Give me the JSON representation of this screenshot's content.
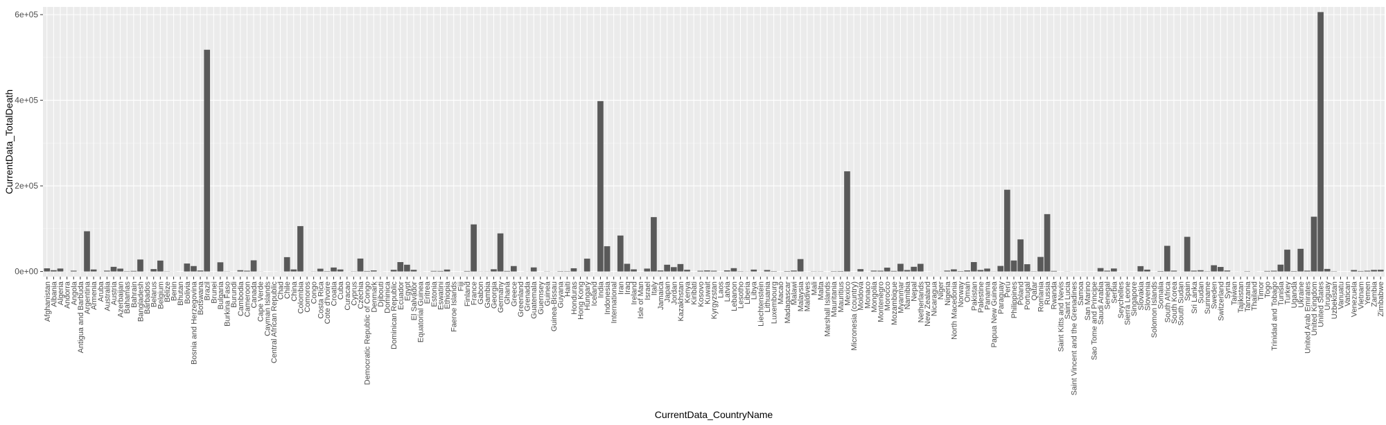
{
  "chart_data": {
    "type": "bar",
    "title": "",
    "xlabel": "CurrentData_CountryName",
    "ylabel": "CurrentData_TotalDeath",
    "ylim": [
      -12000,
      618000
    ],
    "yticks": [
      0,
      200000,
      400000,
      600000
    ],
    "ytick_labels": [
      "0e+00",
      "2e+05",
      "4e+05",
      "6e+05"
    ],
    "grid": true,
    "colors": {
      "panel": "#ebebeb",
      "grid_major": "#ffffff",
      "grid_minor": "#f5f5f5",
      "bar": "#595959"
    },
    "categories": [
      "Afghanistan",
      "Albania",
      "Algeria",
      "Andorra",
      "Angola",
      "Antigua and Barbuda",
      "Argentina",
      "Armenia",
      "Aruba",
      "Australia",
      "Austria",
      "Azerbaijan",
      "Bahamas",
      "Bahrain",
      "Bangladesh",
      "Barbados",
      "Belarus",
      "Belgium",
      "Belize",
      "Benin",
      "Bhutan",
      "Bolivia",
      "Bosnia and Herzegovina",
      "Botswana",
      "Brazil",
      "Brunei",
      "Bulgaria",
      "Burkina Faso",
      "Burundi",
      "Cambodia",
      "Cameroon",
      "Canada",
      "Cape Verde",
      "Cayman Islands",
      "Central African Republic",
      "Chad",
      "Chile",
      "China",
      "Colombia",
      "Comoros",
      "Congo",
      "Costa Rica",
      "Cote d'Ivoire",
      "Croatia",
      "Cuba",
      "Curacao",
      "Cyprus",
      "Czechia",
      "Democratic Republic of Congo",
      "Denmark",
      "Djibouti",
      "Dominica",
      "Dominican Republic",
      "Ecuador",
      "Egypt",
      "El Salvador",
      "Equatorial Guinea",
      "Eritrea",
      "Estonia",
      "Eswatini",
      "Ethiopia",
      "Faeroe Islands",
      "Fiji",
      "Finland",
      "France",
      "Gabon",
      "Gambia",
      "Georgia",
      "Germany",
      "Ghana",
      "Greece",
      "Greenland",
      "Grenada",
      "Guatemala",
      "Guernsey",
      "Guinea",
      "Guinea-Bissau",
      "Guyana",
      "Haiti",
      "Honduras",
      "Hong Kong",
      "Hungary",
      "Iceland",
      "India",
      "Indonesia",
      "International",
      "Iran",
      "Iraq",
      "Ireland",
      "Isle of Man",
      "Israel",
      "Italy",
      "Jamaica",
      "Japan",
      "Jordan",
      "Kazakhstan",
      "Kenya",
      "Kiribati",
      "Kosovo",
      "Kuwait",
      "Kyrgyzstan",
      "Laos",
      "Latvia",
      "Lebanon",
      "Lesotho",
      "Liberia",
      "Libya",
      "Liechtenstein",
      "Lithuania",
      "Luxembourg",
      "Macao",
      "Madagascar",
      "Malawi",
      "Malaysia",
      "Maldives",
      "Mali",
      "Malta",
      "Marshall Islands",
      "Mauritania",
      "Mauritius",
      "Mexico",
      "Micronesia (country)",
      "Moldova",
      "Monaco",
      "Mongolia",
      "Montenegro",
      "Morocco",
      "Mozambique",
      "Myanmar",
      "Namibia",
      "Nepal",
      "Netherlands",
      "New Zealand",
      "Nicaragua",
      "Niger",
      "Nigeria",
      "North Macedonia",
      "Norway",
      "Oman",
      "Pakistan",
      "Palestine",
      "Panama",
      "Papua New Guinea",
      "Paraguay",
      "Peru",
      "Philippines",
      "Poland",
      "Portugal",
      "Qatar",
      "Romania",
      "Russia",
      "Rwanda",
      "Saint Kitts and Nevis",
      "Saint Lucia",
      "Saint Vincent and the Grenadines",
      "Samoa",
      "San Marino",
      "Sao Tome and Principe",
      "Saudi Arabia",
      "Senegal",
      "Serbia",
      "Seychelles",
      "Sierra Leone",
      "Singapore",
      "Slovakia",
      "Slovenia",
      "Solomon Islands",
      "Somalia",
      "South Africa",
      "South Korea",
      "South Sudan",
      "Spain",
      "Sri Lanka",
      "Sudan",
      "Suriname",
      "Sweden",
      "Switzerland",
      "Syria",
      "Taiwan",
      "Tajikistan",
      "Tanzania",
      "Thailand",
      "Timor",
      "Togo",
      "Trinidad and Tobago",
      "Tunisia",
      "Turkey",
      "Uganda",
      "Ukraine",
      "United Arab Emirates",
      "United Kingdom",
      "United States",
      "Uruguay",
      "Uzbekistan",
      "Vanuatu",
      "Vatican",
      "Venezuela",
      "Vietnam",
      "Yemen",
      "Zambia",
      "Zimbabwe"
    ],
    "values": [
      7400,
      3000,
      6900,
      150,
      1900,
      140,
      94000,
      4700,
      180,
      2000,
      10900,
      6700,
      700,
      1400,
      28000,
      120,
      5600,
      25500,
      500,
      160,
      20,
      18600,
      12700,
      2300,
      518000,
      50,
      21500,
      400,
      38,
      3000,
      1800,
      26100,
      250,
      10,
      100,
      190,
      33500,
      4800,
      106000,
      150,
      370,
      6500,
      800,
      9300,
      4700,
      120,
      500,
      30200,
      1100,
      2500,
      170,
      30,
      3900,
      22000,
      15800,
      3900,
      170,
      10,
      1300,
      1200,
      4500,
      1,
      20,
      1100,
      110000,
      300,
      340,
      5200,
      89000,
      1200,
      12700,
      0,
      200,
      9500,
      15,
      400,
      130,
      800,
      700,
      7500,
      200,
      30000,
      30,
      398000,
      59000,
      15,
      84000,
      18000,
      5000,
      30,
      6800,
      127000,
      2400,
      15800,
      10200,
      17400,
      4000,
      10,
      1700,
      2500,
      1800,
      0,
      2600,
      7800,
      650,
      290,
      4400,
      60,
      3400,
      820,
      0,
      950,
      2200,
      29000,
      40,
      500,
      450,
      0,
      800,
      1000,
      234000,
      0,
      5500,
      40,
      2000,
      1800,
      9000,
      1300,
      18000,
      3400,
      11000,
      17900,
      30,
      190,
      200,
      2100,
      5000,
      900,
      2500,
      22000,
      3600,
      6800,
      350,
      13000,
      191000,
      25700,
      75000,
      17000,
      600,
      34000,
      134000,
      1300,
      20,
      270,
      80,
      10,
      90,
      40,
      8000,
      1900,
      7000,
      30,
      120,
      40,
      12500,
      4300,
      35,
      1000,
      60000,
      2000,
      120,
      81000,
      2000,
      3000,
      600,
      14600,
      10600,
      2300,
      100,
      120,
      720,
      160,
      20,
      1200,
      1800,
      16000,
      51000,
      1000,
      53000,
      2000,
      128000,
      606000,
      6000,
      650,
      0,
      0,
      3400,
      1100,
      1800,
      3700,
      4000
    ]
  }
}
